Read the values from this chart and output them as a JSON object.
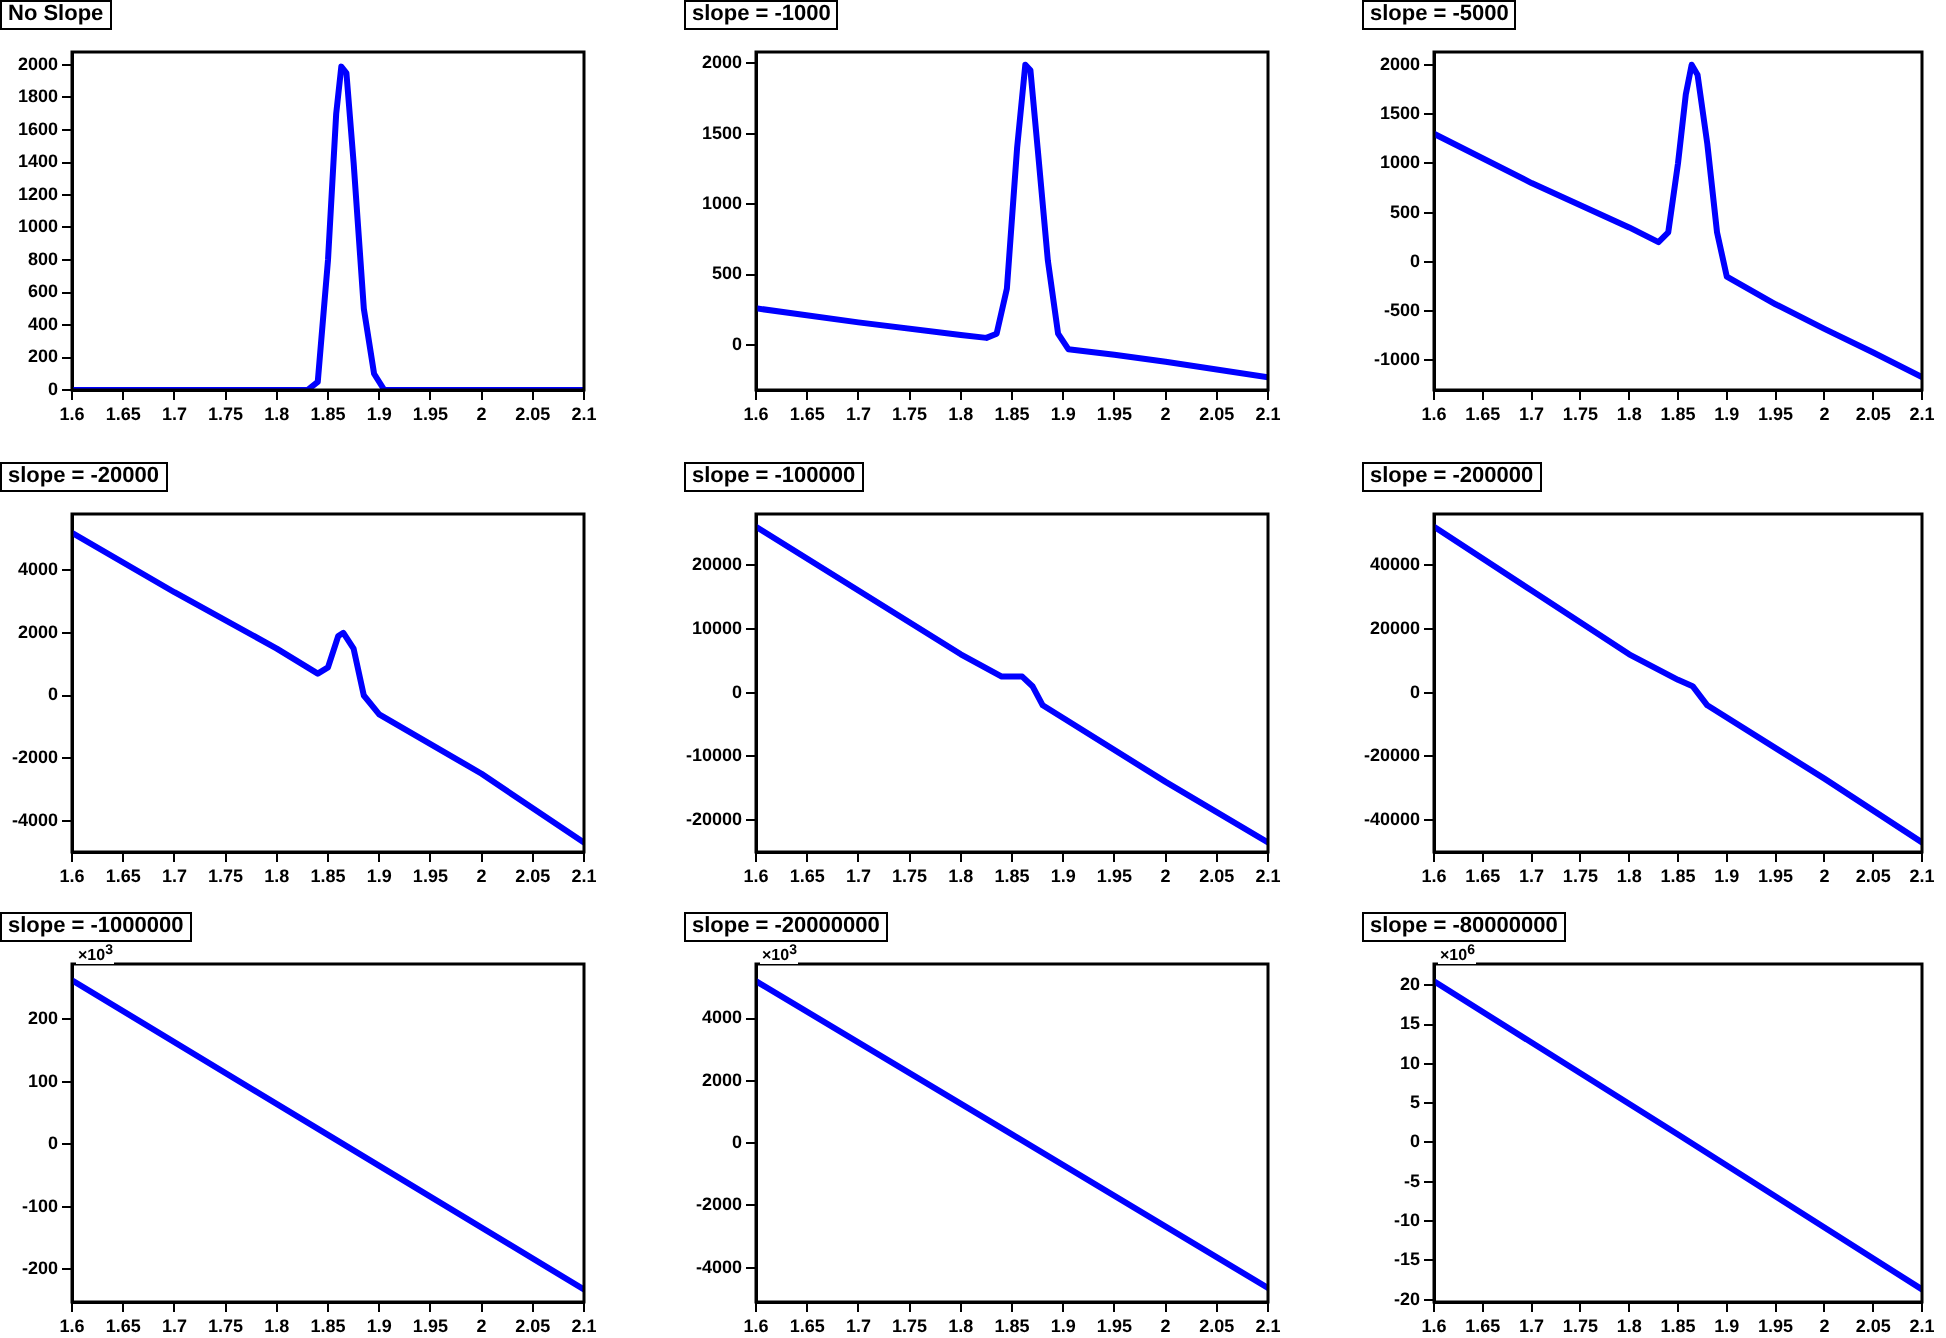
{
  "chart_data": [
    {
      "type": "line",
      "title": "No Slope",
      "xlim": [
        1.6,
        2.1
      ],
      "xticks": [
        1.6,
        1.65,
        1.7,
        1.75,
        1.8,
        1.85,
        1.9,
        1.95,
        2,
        2.05,
        2.1
      ],
      "ylim": [
        0,
        2080
      ],
      "yticks": [
        0,
        200,
        400,
        600,
        800,
        1000,
        1200,
        1400,
        1600,
        1800,
        2000
      ],
      "grid": false,
      "legend": false,
      "marker": "none",
      "line_style": "solid",
      "x": [
        1.6,
        1.7,
        1.8,
        1.83,
        1.84,
        1.85,
        1.858,
        1.863,
        1.868,
        1.875,
        1.885,
        1.895,
        1.905,
        2.0,
        2.1
      ],
      "series": [
        {
          "color": "#0000ff",
          "values": [
            0,
            0,
            0,
            0,
            50,
            800,
            1700,
            1990,
            1950,
            1400,
            500,
            100,
            0,
            0,
            0
          ]
        }
      ]
    },
    {
      "type": "line",
      "title": "slope = -1000",
      "xlim": [
        1.6,
        2.1
      ],
      "xticks": [
        1.6,
        1.65,
        1.7,
        1.75,
        1.8,
        1.85,
        1.9,
        1.95,
        2,
        2.05,
        2.1
      ],
      "ylim": [
        -320,
        2080
      ],
      "yticks": [
        0,
        500,
        1000,
        1500,
        2000
      ],
      "grid": false,
      "legend": false,
      "marker": "none",
      "line_style": "solid",
      "x": [
        1.6,
        1.7,
        1.8,
        1.825,
        1.835,
        1.845,
        1.855,
        1.863,
        1.868,
        1.875,
        1.885,
        1.895,
        1.905,
        1.95,
        2.0,
        2.1
      ],
      "series": [
        {
          "color": "#0000ff",
          "values": [
            260,
            160,
            70,
            50,
            80,
            400,
            1400,
            1990,
            1950,
            1400,
            600,
            80,
            -30,
            -70,
            -120,
            -230
          ]
        }
      ]
    },
    {
      "type": "line",
      "title": "slope = -5000",
      "xlim": [
        1.6,
        2.1
      ],
      "xticks": [
        1.6,
        1.65,
        1.7,
        1.75,
        1.8,
        1.85,
        1.9,
        1.95,
        2,
        2.05,
        2.1
      ],
      "ylim": [
        -1300,
        2130
      ],
      "yticks": [
        -1000,
        -500,
        0,
        500,
        1000,
        1500,
        2000
      ],
      "grid": false,
      "legend": false,
      "marker": "none",
      "line_style": "solid",
      "x": [
        1.6,
        1.7,
        1.8,
        1.83,
        1.84,
        1.85,
        1.858,
        1.864,
        1.87,
        1.88,
        1.89,
        1.9,
        1.95,
        2.0,
        2.05,
        2.1
      ],
      "series": [
        {
          "color": "#0000ff",
          "values": [
            1300,
            800,
            350,
            200,
            300,
            1000,
            1700,
            2000,
            1900,
            1200,
            300,
            -150,
            -430,
            -680,
            -920,
            -1170
          ]
        }
      ]
    },
    {
      "type": "line",
      "title": "slope = -20000",
      "xlim": [
        1.6,
        2.1
      ],
      "xticks": [
        1.6,
        1.65,
        1.7,
        1.75,
        1.8,
        1.85,
        1.9,
        1.95,
        2,
        2.05,
        2.1
      ],
      "ylim": [
        -5000,
        5800
      ],
      "yticks": [
        -4000,
        -2000,
        0,
        2000,
        4000
      ],
      "grid": false,
      "legend": false,
      "marker": "none",
      "line_style": "solid",
      "x": [
        1.6,
        1.7,
        1.8,
        1.84,
        1.85,
        1.86,
        1.865,
        1.875,
        1.885,
        1.9,
        2.0,
        2.1
      ],
      "series": [
        {
          "color": "#0000ff",
          "values": [
            5200,
            3300,
            1500,
            700,
            900,
            1900,
            2000,
            1500,
            0,
            -600,
            -2500,
            -4700
          ]
        }
      ]
    },
    {
      "type": "line",
      "title": "slope = -100000",
      "xlim": [
        1.6,
        2.1
      ],
      "xticks": [
        1.6,
        1.65,
        1.7,
        1.75,
        1.8,
        1.85,
        1.9,
        1.95,
        2,
        2.05,
        2.1
      ],
      "ylim": [
        -25000,
        28000
      ],
      "yticks": [
        -20000,
        -10000,
        0,
        10000,
        20000
      ],
      "grid": false,
      "legend": false,
      "marker": "none",
      "line_style": "solid",
      "x": [
        1.6,
        1.7,
        1.8,
        1.84,
        1.86,
        1.87,
        1.88,
        1.9,
        2.0,
        2.1
      ],
      "series": [
        {
          "color": "#0000ff",
          "values": [
            26000,
            16000,
            6000,
            2500,
            2500,
            1000,
            -2000,
            -4000,
            -14000,
            -23500
          ]
        }
      ]
    },
    {
      "type": "line",
      "title": "slope = -200000",
      "xlim": [
        1.6,
        2.1
      ],
      "xticks": [
        1.6,
        1.65,
        1.7,
        1.75,
        1.8,
        1.85,
        1.9,
        1.95,
        2,
        2.05,
        2.1
      ],
      "ylim": [
        -50000,
        56000
      ],
      "yticks": [
        -40000,
        -20000,
        0,
        20000,
        40000
      ],
      "grid": false,
      "legend": false,
      "marker": "none",
      "line_style": "solid",
      "x": [
        1.6,
        1.7,
        1.8,
        1.85,
        1.865,
        1.88,
        2.0,
        2.1
      ],
      "series": [
        {
          "color": "#0000ff",
          "values": [
            52000,
            32000,
            12000,
            4000,
            2000,
            -4000,
            -27000,
            -47000
          ]
        }
      ]
    },
    {
      "type": "line",
      "title": "slope = -1000000",
      "annotations": [
        "×10$^{3}$"
      ],
      "xlim": [
        1.6,
        2.1
      ],
      "xticks": [
        1.6,
        1.65,
        1.7,
        1.75,
        1.8,
        1.85,
        1.9,
        1.95,
        2,
        2.05,
        2.1
      ],
      "ylim": [
        -252,
        288
      ],
      "yticks": [
        -200,
        -100,
        0,
        100,
        200
      ],
      "grid": false,
      "legend": false,
      "marker": "none",
      "line_style": "solid",
      "x": [
        1.6,
        1.85,
        2.1
      ],
      "series": [
        {
          "color": "#0000ff",
          "values": [
            262,
            15,
            -232
          ]
        }
      ]
    },
    {
      "type": "line",
      "title": "slope = -20000000",
      "annotations": [
        "×10$^{3}$"
      ],
      "xlim": [
        1.6,
        2.1
      ],
      "xticks": [
        1.6,
        1.65,
        1.7,
        1.75,
        1.8,
        1.85,
        1.9,
        1.95,
        2,
        2.05,
        2.1
      ],
      "ylim": [
        -5100,
        5750
      ],
      "yticks": [
        -4000,
        -2000,
        0,
        2000,
        4000
      ],
      "grid": false,
      "legend": false,
      "marker": "none",
      "line_style": "solid",
      "x": [
        1.6,
        1.85,
        2.1
      ],
      "series": [
        {
          "color": "#0000ff",
          "values": [
            5200,
            280,
            -4650
          ]
        }
      ]
    },
    {
      "type": "line",
      "title": "slope = -80000000",
      "annotations": [
        "×10$^{6}$"
      ],
      "xlim": [
        1.6,
        2.1
      ],
      "xticks": [
        1.6,
        1.65,
        1.7,
        1.75,
        1.8,
        1.85,
        1.9,
        1.95,
        2,
        2.05,
        2.1
      ],
      "ylim": [
        -20.3,
        22.7
      ],
      "yticks": [
        -20,
        -15,
        -10,
        -5,
        0,
        5,
        10,
        15,
        20
      ],
      "grid": false,
      "legend": false,
      "marker": "none",
      "line_style": "solid",
      "x": [
        1.6,
        1.85,
        2.1
      ],
      "series": [
        {
          "color": "#0000ff",
          "values": [
            20.5,
            1,
            -18.7
          ]
        }
      ]
    }
  ]
}
